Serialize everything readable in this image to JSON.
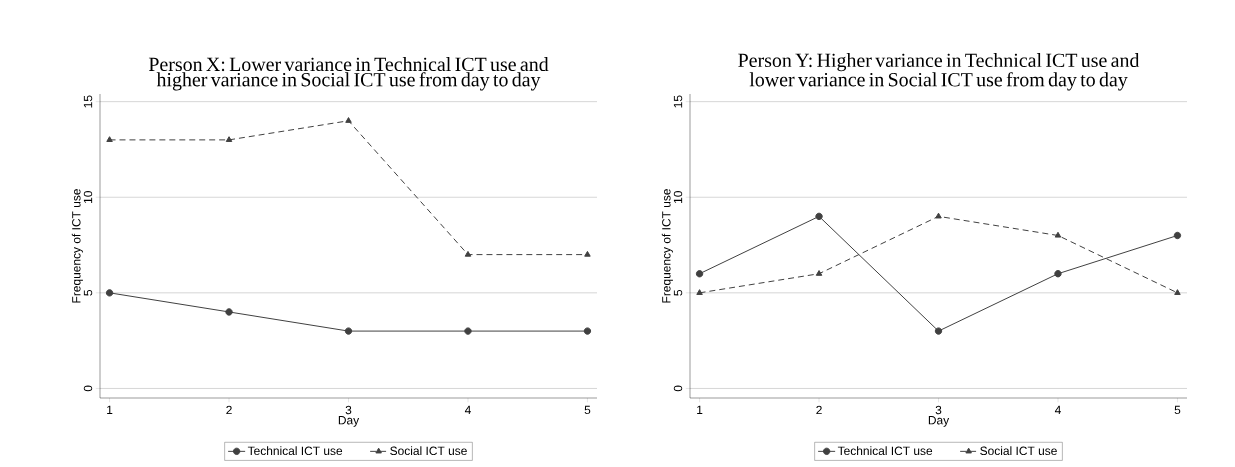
{
  "chart_data": [
    {
      "type": "line",
      "title": "Person X: Lower variance in Technical ICT use and higher variance in Social ICT use from day to day",
      "xlabel": "Day",
      "ylabel": "Frequency of ICT use",
      "x": [
        1,
        2,
        3,
        4,
        5
      ],
      "xlim": [
        0.92,
        5.08
      ],
      "xticks": [
        1,
        2,
        3,
        4,
        5
      ],
      "ylim": [
        -0.5,
        15.4
      ],
      "yticks": [
        0,
        5,
        10,
        15
      ],
      "grid": "y",
      "legend": "bottom",
      "series": [
        {
          "name": "Technical ICT use",
          "color": "#404040",
          "values": [
            5,
            4,
            3,
            3,
            3
          ],
          "marker": "circle",
          "line_style": "solid"
        },
        {
          "name": "Social ICT use",
          "color": "#404040",
          "values": [
            13,
            13,
            14,
            7,
            7
          ],
          "marker": "triangle",
          "line_style": "dashed"
        }
      ]
    },
    {
      "type": "line",
      "title": "Person Y: Higher variance in Technical ICT use and lower variance in Social ICT use from day to day",
      "xlabel": "Day",
      "ylabel": "Frequency of ICT use",
      "x": [
        1,
        2,
        3,
        4,
        5
      ],
      "xlim": [
        0.92,
        5.08
      ],
      "xticks": [
        1,
        2,
        3,
        4,
        5
      ],
      "ylim": [
        -0.5,
        15.4
      ],
      "yticks": [
        0,
        5,
        10,
        15
      ],
      "grid": "y",
      "legend": "bottom",
      "series": [
        {
          "name": "Technical ICT use",
          "color": "#404040",
          "values": [
            6,
            9,
            3,
            6,
            8
          ],
          "marker": "circle",
          "line_style": "solid"
        },
        {
          "name": "Social ICT use",
          "color": "#404040",
          "values": [
            5,
            6,
            9,
            8,
            5
          ],
          "marker": "triangle",
          "line_style": "dashed"
        }
      ]
    }
  ]
}
